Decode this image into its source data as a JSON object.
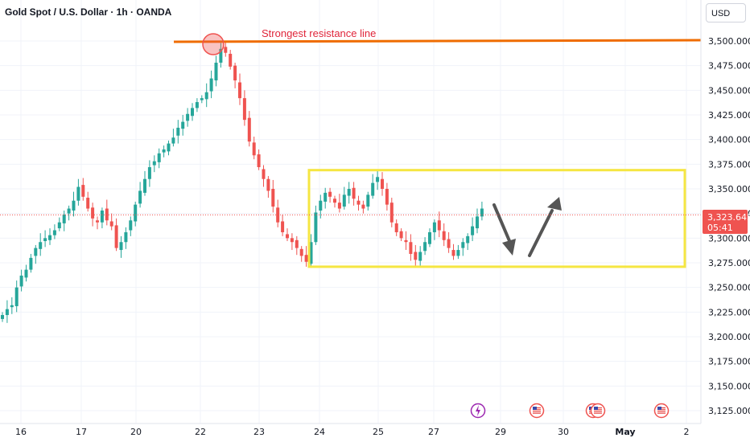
{
  "header": {
    "title": "Gold Spot / U.S. Dollar · 1h · OANDA",
    "currency": "USD"
  },
  "colors": {
    "up": "#26a69a",
    "down": "#ef5350",
    "grid": "#f0f3fa",
    "resistance": "#ef6c00",
    "box": "#f5e642",
    "arrow": "#4a4a4a",
    "price_tag": "#ef5350"
  },
  "chart_data": {
    "type": "candlestick",
    "symbol": "XAUUSD",
    "timeframe": "1h",
    "y_ticks": [
      3125,
      3150,
      3175,
      3200,
      3225,
      3250,
      3275,
      3300,
      3325,
      3350,
      3375,
      3400,
      3425,
      3450,
      3475,
      3500
    ],
    "y_tick_labels": [
      "3,125.000",
      "3,150.000",
      "3,175.000",
      "3,200.000",
      "3,225.000",
      "3,250.000",
      "3,275.000",
      "3,300.000",
      "3,325.000",
      "3,350.000",
      "3,375.000",
      "3,400.000",
      "3,425.000",
      "3,450.000",
      "3,475.000",
      "3,500.000"
    ],
    "ylim": [
      3118,
      3540
    ],
    "x_labels": [
      "16",
      "17",
      "20",
      "22",
      "23",
      "24",
      "25",
      "27",
      "29",
      "30",
      "May",
      "2"
    ],
    "current_price": "3,323.645",
    "countdown": "05:41",
    "resistance_level": 3500,
    "resistance_label": "Strongest resistance line",
    "range_box": {
      "top": 3369,
      "bottom": 3271
    },
    "closes": [
      3222,
      3228,
      3232,
      3250,
      3262,
      3268,
      3280,
      3290,
      3296,
      3300,
      3303,
      3308,
      3316,
      3324,
      3330,
      3338,
      3352,
      3342,
      3330,
      3320,
      3316,
      3328,
      3318,
      3312,
      3290,
      3296,
      3306,
      3318,
      3334,
      3348,
      3360,
      3372,
      3378,
      3386,
      3390,
      3396,
      3402,
      3412,
      3418,
      3426,
      3432,
      3438,
      3442,
      3448,
      3462,
      3478,
      3492,
      3488,
      3474,
      3460,
      3442,
      3420,
      3398,
      3384,
      3372,
      3360,
      3348,
      3332,
      3316,
      3306,
      3300,
      3296,
      3290,
      3282,
      3276,
      3296,
      3326,
      3338,
      3346,
      3342,
      3336,
      3330,
      3344,
      3350,
      3340,
      3334,
      3330,
      3344,
      3356,
      3362,
      3350,
      3334,
      3316,
      3306,
      3300,
      3296,
      3284,
      3278,
      3286,
      3296,
      3306,
      3316,
      3308,
      3298,
      3290,
      3282,
      3288,
      3296,
      3302,
      3312,
      3322,
      3330
    ]
  },
  "events": [
    "flash-icon",
    "us-flag-icon",
    "us-flag-icon",
    "us-flag-icon",
    "us-flag-icon"
  ]
}
